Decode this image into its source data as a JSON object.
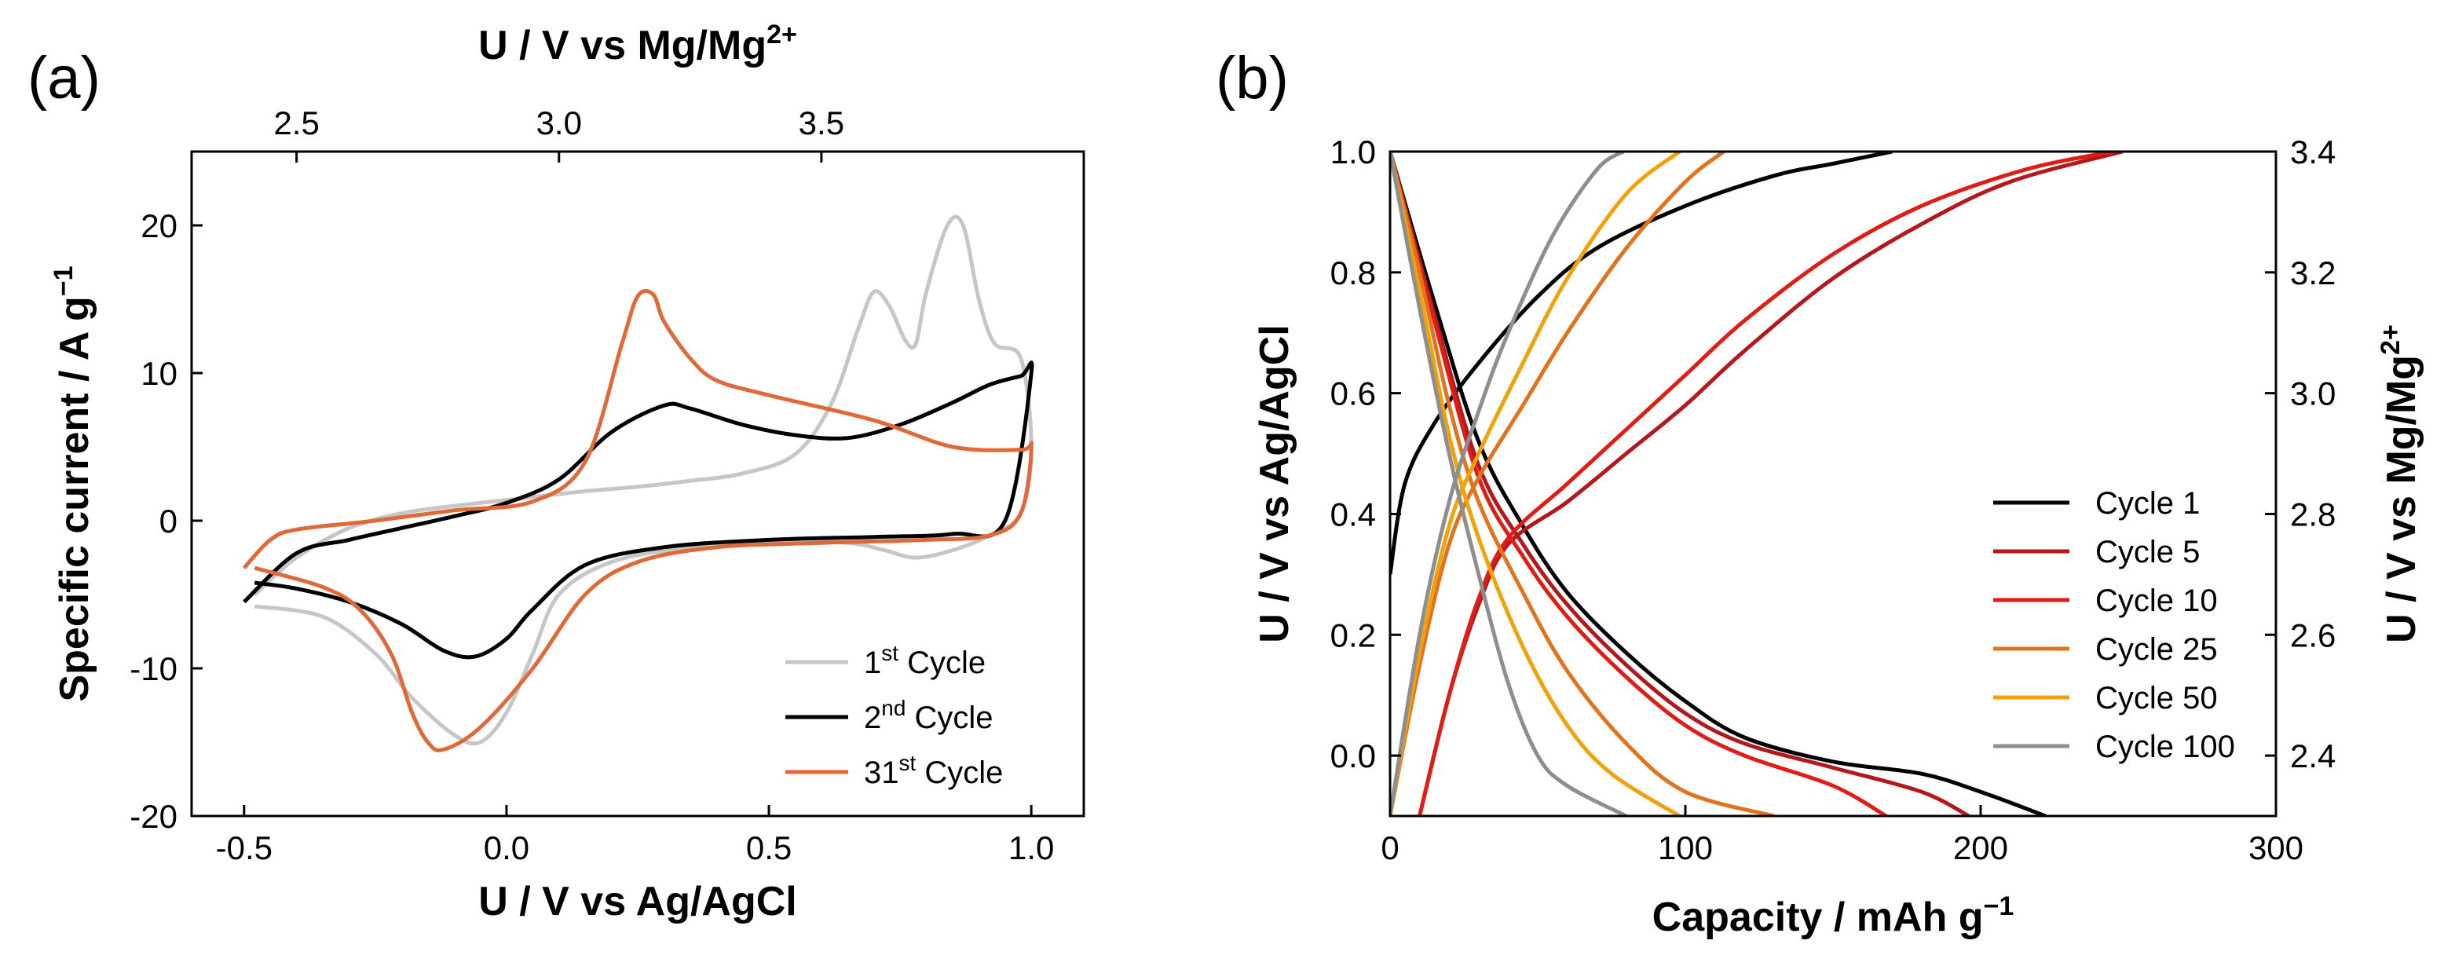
{
  "chart_data": [
    {
      "panel": "(a)",
      "type": "line",
      "xlabel": "U / V vs Ag/AgCl",
      "x2label": "U / V vs Mg/Mg",
      "x2label_sup": "2+",
      "ylabel": "Specific current / A g",
      "ylabel_sup": "−1",
      "xlim": [
        -0.6,
        1.1
      ],
      "ylim": [
        -20,
        25
      ],
      "xticks": [
        "-0.5",
        "0.0",
        "0.5",
        "1.0"
      ],
      "x2ticks": [
        "2.5",
        "3.0",
        "3.5"
      ],
      "yticks": [
        "-20",
        "-10",
        "0",
        "10",
        "20"
      ],
      "legend_position": "bottom-right",
      "series": [
        {
          "name": "1st Cycle",
          "legend_main": "1",
          "legend_sup": "st",
          "legend_rest": " Cycle",
          "color": "#c6c6c6",
          "x": [
            -0.48,
            -0.35,
            -0.25,
            -0.18,
            -0.1,
            -0.05,
            0.0,
            0.05,
            0.1,
            0.2,
            0.35,
            0.5,
            0.65,
            0.72,
            0.78,
            0.85,
            0.92,
            0.98,
            1.0,
            0.98,
            0.93,
            0.9,
            0.87,
            0.84,
            0.8,
            0.78,
            0.76,
            0.73,
            0.7,
            0.67,
            0.62,
            0.55,
            0.45,
            0.35,
            0.25,
            0.15,
            0.05,
            0.0,
            -0.1,
            -0.2,
            -0.3,
            -0.4,
            -0.48
          ],
          "y": [
            -5.8,
            -6.5,
            -9.0,
            -12.0,
            -14.5,
            -15.0,
            -13.0,
            -9.0,
            -5.0,
            -2.8,
            -1.8,
            -1.4,
            -1.5,
            -2.0,
            -2.5,
            -2.0,
            -1.0,
            0.5,
            5.0,
            11.0,
            12.0,
            15.0,
            20.0,
            20.0,
            15.5,
            12.0,
            12.2,
            14.5,
            15.5,
            13.0,
            8.0,
            4.5,
            3.2,
            2.7,
            2.3,
            2.0,
            1.6,
            1.4,
            1.0,
            0.5,
            -0.5,
            -2.5,
            -5.0
          ]
        },
        {
          "name": "2nd Cycle",
          "legend_main": "2",
          "legend_sup": "nd",
          "legend_rest": " Cycle",
          "color": "#000000",
          "x": [
            -0.48,
            -0.4,
            -0.3,
            -0.2,
            -0.12,
            -0.06,
            0.0,
            0.05,
            0.15,
            0.3,
            0.5,
            0.7,
            0.85,
            0.95,
            1.0,
            0.98,
            0.92,
            0.85,
            0.75,
            0.65,
            0.55,
            0.45,
            0.35,
            0.3,
            0.2,
            0.1,
            0.0,
            -0.1,
            -0.2,
            -0.3,
            -0.4,
            -0.5
          ],
          "y": [
            -4.2,
            -4.6,
            -5.5,
            -7.0,
            -8.8,
            -9.2,
            -8.0,
            -6.0,
            -3.0,
            -1.8,
            -1.3,
            -1.1,
            -0.9,
            0.0,
            10.0,
            9.8,
            9.2,
            8.0,
            6.5,
            5.6,
            5.8,
            6.5,
            7.6,
            7.8,
            6.0,
            2.8,
            1.2,
            0.3,
            -0.5,
            -1.3,
            -2.2,
            -5.5
          ]
        },
        {
          "name": "31st Cycle",
          "legend_main": "31",
          "legend_sup": "st",
          "legend_rest": " Cycle",
          "color": "#e0693a",
          "x": [
            -0.48,
            -0.35,
            -0.28,
            -0.22,
            -0.18,
            -0.15,
            -0.12,
            -0.05,
            0.05,
            0.15,
            0.25,
            0.4,
            0.6,
            0.8,
            0.92,
            0.98,
            1.0,
            0.98,
            0.85,
            0.7,
            0.5,
            0.4,
            0.35,
            0.3,
            0.28,
            0.25,
            0.22,
            0.15,
            0.05,
            -0.1,
            -0.25,
            -0.4,
            -0.45,
            -0.5
          ],
          "y": [
            -3.2,
            -4.5,
            -6.0,
            -9.0,
            -13.0,
            -15.0,
            -15.5,
            -14.0,
            -10.0,
            -5.0,
            -2.8,
            -1.8,
            -1.5,
            -1.3,
            -1.0,
            0.5,
            5.0,
            4.8,
            5.0,
            6.8,
            8.5,
            9.5,
            11.0,
            13.5,
            15.3,
            15.2,
            12.0,
            4.0,
            1.3,
            0.7,
            0.0,
            -0.6,
            -1.3,
            -3.2
          ]
        }
      ]
    },
    {
      "panel": "(b)",
      "type": "line",
      "xlabel": "Capacity / mAh g",
      "xlabel_sup": "−1",
      "ylabel": "U / V vs Ag/AgCl",
      "y2label": "U / V vs Mg/Mg",
      "y2label_sup": "2+",
      "xlim": [
        0,
        300
      ],
      "ylim": [
        -0.1,
        1.0
      ],
      "xticks": [
        "0",
        "100",
        "200",
        "300"
      ],
      "yticks": [
        "0.0",
        "0.2",
        "0.4",
        "0.6",
        "0.8",
        "1.0"
      ],
      "y2ticks": [
        "2.4",
        "2.6",
        "2.8",
        "3.0",
        "3.2",
        "3.4"
      ],
      "legend_position": "bottom-right",
      "series": [
        {
          "name": "Cycle 1",
          "color": "#000000",
          "charge": {
            "x": [
              0,
              5,
              15,
              30,
              50,
              70,
              100,
              130,
              150,
              170
            ],
            "y": [
              0.3,
              0.45,
              0.55,
              0.65,
              0.76,
              0.84,
              0.91,
              0.96,
              0.98,
              1.0
            ]
          },
          "discharge": {
            "x": [
              0,
              15,
              30,
              45,
              60,
              80,
              100,
              120,
              150,
              180,
              200,
              222
            ],
            "y": [
              1.0,
              0.75,
              0.52,
              0.38,
              0.27,
              0.17,
              0.09,
              0.03,
              -0.01,
              -0.03,
              -0.06,
              -0.1
            ]
          }
        },
        {
          "name": "Cycle 5",
          "color": "#b3181c",
          "charge": {
            "x": [
              10,
              20,
              30,
              40,
              60,
              80,
              100,
              120,
              150,
              180,
              210,
              248
            ],
            "y": [
              -0.1,
              0.1,
              0.25,
              0.35,
              0.42,
              0.5,
              0.58,
              0.67,
              0.79,
              0.88,
              0.95,
              1.0
            ]
          },
          "discharge": {
            "x": [
              0,
              15,
              30,
              45,
              60,
              80,
              100,
              120,
              150,
              180,
              196
            ],
            "y": [
              1.0,
              0.73,
              0.48,
              0.35,
              0.25,
              0.15,
              0.07,
              0.02,
              -0.02,
              -0.06,
              -0.1
            ]
          }
        },
        {
          "name": "Cycle 10",
          "color": "#de1e16",
          "charge": {
            "x": [
              10,
              20,
              30,
              40,
              60,
              80,
              100,
              120,
              150,
              180,
              215,
              245
            ],
            "y": [
              -0.1,
              0.1,
              0.26,
              0.36,
              0.45,
              0.54,
              0.63,
              0.72,
              0.83,
              0.91,
              0.97,
              1.0
            ]
          },
          "discharge": {
            "x": [
              0,
              15,
              30,
              45,
              60,
              80,
              100,
              120,
              150,
              168
            ],
            "y": [
              1.0,
              0.72,
              0.46,
              0.33,
              0.23,
              0.13,
              0.05,
              0.0,
              -0.05,
              -0.1
            ]
          }
        },
        {
          "name": "Cycle 25",
          "color": "#e0731e",
          "charge": {
            "x": [
              0,
              10,
              20,
              30,
              45,
              60,
              80,
              100,
              113
            ],
            "y": [
              -0.1,
              0.15,
              0.35,
              0.46,
              0.58,
              0.7,
              0.84,
              0.95,
              1.0
            ]
          },
          "discharge": {
            "x": [
              0,
              10,
              20,
              30,
              45,
              60,
              80,
              100,
              130
            ],
            "y": [
              1.0,
              0.8,
              0.58,
              0.42,
              0.27,
              0.14,
              0.02,
              -0.06,
              -0.1
            ]
          }
        },
        {
          "name": "Cycle 50",
          "color": "#f0a20a",
          "charge": {
            "x": [
              0,
              10,
              20,
              30,
              45,
              60,
              80,
              98
            ],
            "y": [
              -0.1,
              0.17,
              0.38,
              0.5,
              0.65,
              0.79,
              0.93,
              1.0
            ]
          },
          "discharge": {
            "x": [
              0,
              10,
              20,
              30,
              45,
              60,
              75,
              98
            ],
            "y": [
              1.0,
              0.77,
              0.53,
              0.36,
              0.18,
              0.05,
              -0.03,
              -0.1
            ]
          }
        },
        {
          "name": "Cycle 100",
          "color": "#8e8e8e",
          "charge": {
            "x": [
              0,
              10,
              20,
              30,
              40,
              55,
              70,
              79
            ],
            "y": [
              -0.1,
              0.2,
              0.42,
              0.57,
              0.7,
              0.86,
              0.97,
              1.0
            ]
          },
          "discharge": {
            "x": [
              0,
              10,
              20,
              30,
              40,
              50,
              60,
              80
            ],
            "y": [
              1.0,
              0.74,
              0.5,
              0.3,
              0.12,
              0.0,
              -0.05,
              -0.1
            ]
          }
        }
      ]
    }
  ]
}
